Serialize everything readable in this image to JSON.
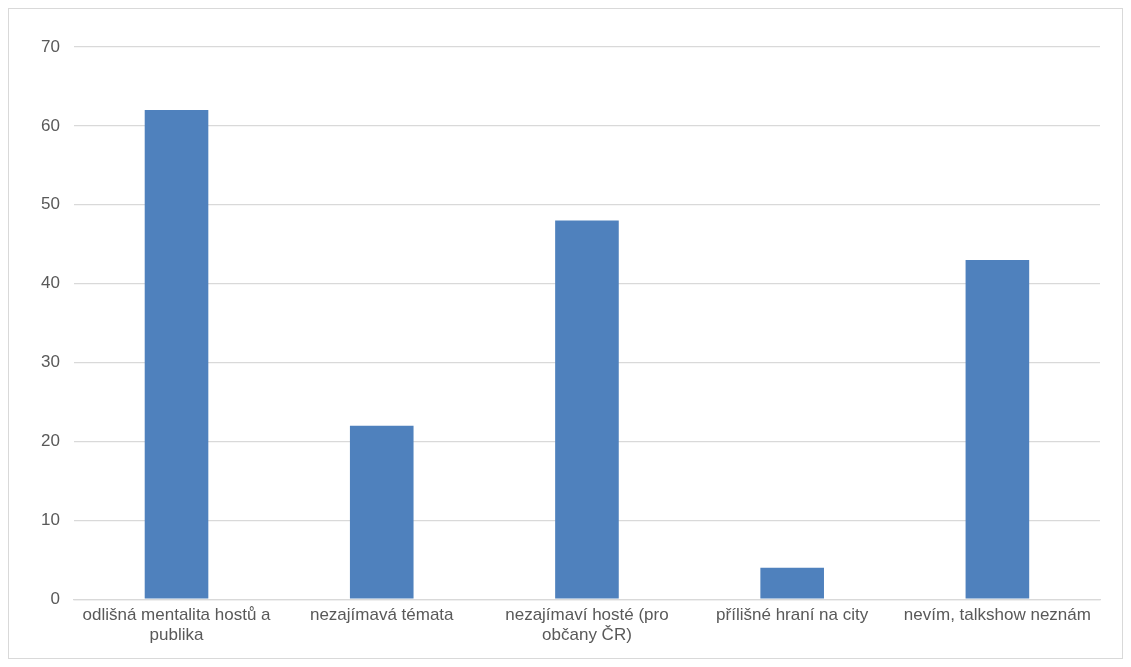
{
  "chart_data": {
    "type": "bar",
    "categories": [
      "odlišná mentalita hostů a publika",
      "nezajímavá témata",
      "nezajímaví hosté (pro občany ČR)",
      "přílišné hraní na city",
      "nevím, talkshow neznám"
    ],
    "values": [
      62,
      22,
      48,
      4,
      43
    ],
    "color": "#4f81bd",
    "ylim": [
      0,
      70
    ],
    "yticks": [
      0,
      10,
      20,
      30,
      40,
      50,
      60,
      70
    ],
    "grid": "y",
    "legend": false
  }
}
